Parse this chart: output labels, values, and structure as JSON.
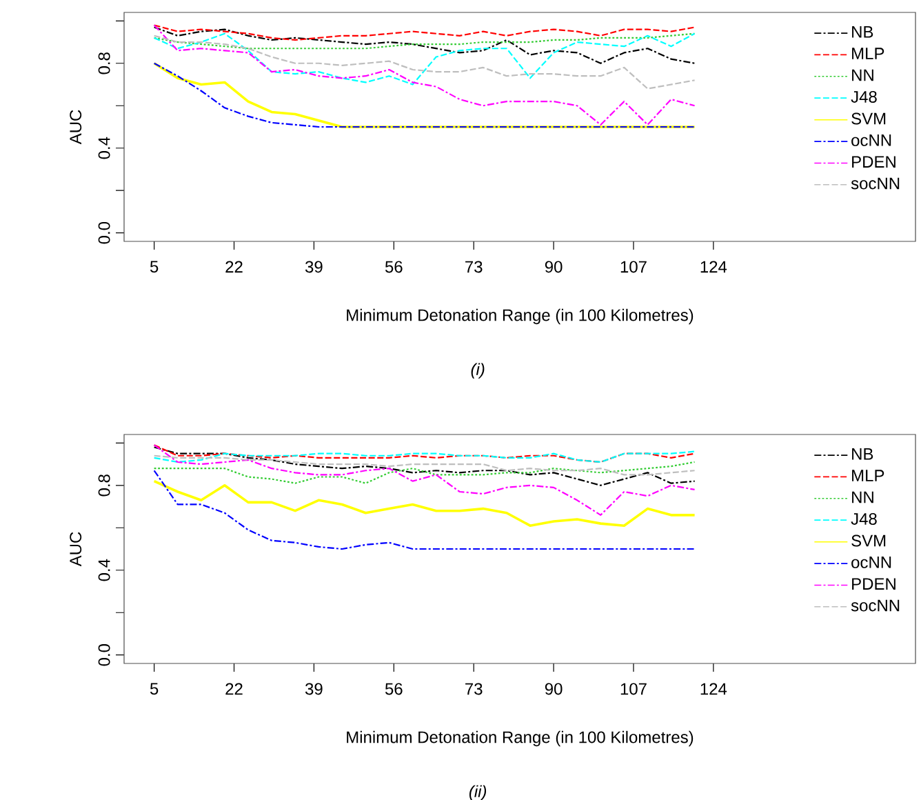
{
  "chart_data": [
    {
      "type": "line",
      "xlabel": "Minimum Detonation Range (in 100 Kilometres)",
      "ylabel": "AUC",
      "annotations": [
        "*(i)*"
      ],
      "legend": "top right",
      "xlim": [
        -1.4,
        167
      ],
      "ylim": [
        -0.04,
        1.04
      ],
      "xticks": [
        5,
        22,
        39,
        56,
        73,
        90,
        107,
        124
      ],
      "yticks": [
        {
          "value": 0,
          "label": "0.0"
        },
        {
          "value": 0.2,
          "label": null
        },
        {
          "value": 0.4,
          "label": "0.4"
        },
        {
          "value": 0.6,
          "label": null
        },
        {
          "value": 0.8,
          "label": "0.8"
        },
        {
          "value": 1.0,
          "label": null
        }
      ],
      "x": [
        5,
        10,
        15,
        20,
        25,
        30,
        35,
        40,
        45,
        50,
        55,
        60,
        65,
        70,
        75,
        80,
        85,
        90,
        95,
        100,
        105,
        110,
        115,
        120
      ],
      "series": [
        {
          "name": "NB",
          "color": "#000000",
          "line_style": "dashdot",
          "values": [
            0.97,
            0.93,
            0.95,
            0.96,
            0.93,
            0.91,
            0.92,
            0.91,
            0.9,
            0.89,
            0.9,
            0.89,
            0.87,
            0.85,
            0.86,
            0.91,
            0.84,
            0.86,
            0.85,
            0.8,
            0.85,
            0.87,
            0.82,
            0.8
          ]
        },
        {
          "name": "MLP",
          "color": "#ff0000",
          "line_style": "dashed",
          "values": [
            0.98,
            0.95,
            0.96,
            0.95,
            0.94,
            0.92,
            0.91,
            0.92,
            0.93,
            0.93,
            0.94,
            0.95,
            0.94,
            0.93,
            0.95,
            0.93,
            0.95,
            0.96,
            0.95,
            0.93,
            0.96,
            0.96,
            0.95,
            0.97
          ]
        },
        {
          "name": "NN",
          "color": "#33cc33",
          "line_style": "dotted",
          "values": [
            0.92,
            0.9,
            0.89,
            0.88,
            0.87,
            0.87,
            0.87,
            0.87,
            0.87,
            0.87,
            0.88,
            0.89,
            0.89,
            0.89,
            0.9,
            0.9,
            0.9,
            0.91,
            0.91,
            0.92,
            0.92,
            0.92,
            0.93,
            0.94
          ]
        },
        {
          "name": "J48",
          "color": "#00ffff",
          "line_style": "dashed",
          "values": [
            0.92,
            0.87,
            0.9,
            0.94,
            0.86,
            0.76,
            0.75,
            0.76,
            0.73,
            0.71,
            0.74,
            0.7,
            0.83,
            0.86,
            0.87,
            0.87,
            0.73,
            0.85,
            0.9,
            0.89,
            0.88,
            0.93,
            0.88,
            0.94
          ]
        },
        {
          "name": "SVM",
          "color": "#ffff00",
          "line_style": "solid",
          "values": [
            0.8,
            0.73,
            0.7,
            0.71,
            0.62,
            0.57,
            0.56,
            0.53,
            0.5,
            0.5,
            0.5,
            0.5,
            0.5,
            0.5,
            0.5,
            0.5,
            0.5,
            0.5,
            0.5,
            0.5,
            0.5,
            0.5,
            0.5,
            0.5
          ]
        },
        {
          "name": "ocNN",
          "color": "#0000ff",
          "line_style": "dashdot",
          "values": [
            0.8,
            0.74,
            0.67,
            0.59,
            0.55,
            0.52,
            0.51,
            0.5,
            0.5,
            0.5,
            0.5,
            0.5,
            0.5,
            0.5,
            0.5,
            0.5,
            0.5,
            0.5,
            0.5,
            0.5,
            0.5,
            0.5,
            0.5,
            0.5
          ]
        },
        {
          "name": "PDEN",
          "color": "#ff00ff",
          "line_style": "dashdot",
          "values": [
            0.98,
            0.86,
            0.87,
            0.86,
            0.85,
            0.76,
            0.77,
            0.74,
            0.73,
            0.74,
            0.77,
            0.71,
            0.69,
            0.63,
            0.6,
            0.62,
            0.62,
            0.62,
            0.6,
            0.51,
            0.62,
            0.51,
            0.63,
            0.6
          ]
        },
        {
          "name": "socNN",
          "color": "#bebebe",
          "line_style": "dashed",
          "values": [
            0.93,
            0.9,
            0.9,
            0.89,
            0.87,
            0.83,
            0.8,
            0.8,
            0.79,
            0.8,
            0.81,
            0.77,
            0.76,
            0.76,
            0.78,
            0.74,
            0.75,
            0.75,
            0.74,
            0.74,
            0.78,
            0.68,
            0.7,
            0.72
          ]
        }
      ]
    },
    {
      "type": "line",
      "xlabel": "Minimum Detonation Range (in 100 Kilometres)",
      "ylabel": "AUC",
      "annotations": [
        "*(ii)*"
      ],
      "legend": "top right",
      "xlim": [
        -1.4,
        167
      ],
      "ylim": [
        -0.04,
        1.04
      ],
      "xticks": [
        5,
        22,
        39,
        56,
        73,
        90,
        107,
        124
      ],
      "yticks": [
        {
          "value": 0,
          "label": "0.0"
        },
        {
          "value": 0.2,
          "label": null
        },
        {
          "value": 0.4,
          "label": "0.4"
        },
        {
          "value": 0.6,
          "label": null
        },
        {
          "value": 0.8,
          "label": "0.8"
        },
        {
          "value": 1.0,
          "label": null
        }
      ],
      "x": [
        5,
        10,
        15,
        20,
        25,
        30,
        35,
        40,
        45,
        50,
        55,
        60,
        65,
        70,
        75,
        80,
        85,
        90,
        95,
        100,
        105,
        110,
        115,
        120
      ],
      "series": [
        {
          "name": "NB",
          "color": "#000000",
          "line_style": "dashdot",
          "values": [
            0.98,
            0.95,
            0.95,
            0.95,
            0.93,
            0.92,
            0.9,
            0.89,
            0.88,
            0.89,
            0.88,
            0.86,
            0.87,
            0.86,
            0.87,
            0.87,
            0.85,
            0.86,
            0.83,
            0.8,
            0.83,
            0.86,
            0.81,
            0.82
          ]
        },
        {
          "name": "MLP",
          "color": "#ff0000",
          "line_style": "dashed",
          "values": [
            0.99,
            0.94,
            0.94,
            0.95,
            0.94,
            0.93,
            0.94,
            0.93,
            0.93,
            0.93,
            0.93,
            0.94,
            0.93,
            0.94,
            0.94,
            0.93,
            0.94,
            0.94,
            0.92,
            0.91,
            0.95,
            0.95,
            0.93,
            0.95
          ]
        },
        {
          "name": "NN",
          "color": "#33cc33",
          "line_style": "dotted",
          "values": [
            0.88,
            0.88,
            0.88,
            0.88,
            0.84,
            0.83,
            0.81,
            0.84,
            0.84,
            0.81,
            0.86,
            0.88,
            0.85,
            0.85,
            0.85,
            0.86,
            0.86,
            0.88,
            0.87,
            0.86,
            0.87,
            0.88,
            0.89,
            0.91
          ]
        },
        {
          "name": "J48",
          "color": "#00ffff",
          "line_style": "dashed",
          "values": [
            0.93,
            0.91,
            0.92,
            0.95,
            0.94,
            0.94,
            0.94,
            0.95,
            0.95,
            0.94,
            0.94,
            0.95,
            0.95,
            0.94,
            0.94,
            0.93,
            0.93,
            0.95,
            0.92,
            0.91,
            0.95,
            0.95,
            0.95,
            0.96
          ]
        },
        {
          "name": "SVM",
          "color": "#ffff00",
          "line_style": "solid",
          "values": [
            0.82,
            0.77,
            0.73,
            0.8,
            0.72,
            0.72,
            0.68,
            0.73,
            0.71,
            0.67,
            0.69,
            0.71,
            0.68,
            0.68,
            0.69,
            0.67,
            0.61,
            0.63,
            0.64,
            0.62,
            0.61,
            0.69,
            0.66,
            0.66
          ]
        },
        {
          "name": "ocNN",
          "color": "#0000ff",
          "line_style": "dashdot",
          "values": [
            0.87,
            0.71,
            0.71,
            0.67,
            0.59,
            0.54,
            0.53,
            0.51,
            0.5,
            0.52,
            0.53,
            0.5,
            0.5,
            0.5,
            0.5,
            0.5,
            0.5,
            0.5,
            0.5,
            0.5,
            0.5,
            0.5,
            0.5,
            0.5
          ]
        },
        {
          "name": "PDEN",
          "color": "#ff00ff",
          "line_style": "dashdot",
          "values": [
            0.99,
            0.91,
            0.9,
            0.91,
            0.92,
            0.88,
            0.86,
            0.85,
            0.85,
            0.87,
            0.88,
            0.82,
            0.85,
            0.77,
            0.76,
            0.79,
            0.8,
            0.79,
            0.73,
            0.66,
            0.77,
            0.75,
            0.8,
            0.78
          ]
        },
        {
          "name": "socNN",
          "color": "#bebebe",
          "line_style": "dashed",
          "values": [
            0.94,
            0.93,
            0.93,
            0.93,
            0.92,
            0.92,
            0.91,
            0.9,
            0.9,
            0.9,
            0.89,
            0.9,
            0.9,
            0.9,
            0.9,
            0.87,
            0.88,
            0.87,
            0.87,
            0.88,
            0.85,
            0.85,
            0.86,
            0.87
          ]
        }
      ]
    }
  ]
}
